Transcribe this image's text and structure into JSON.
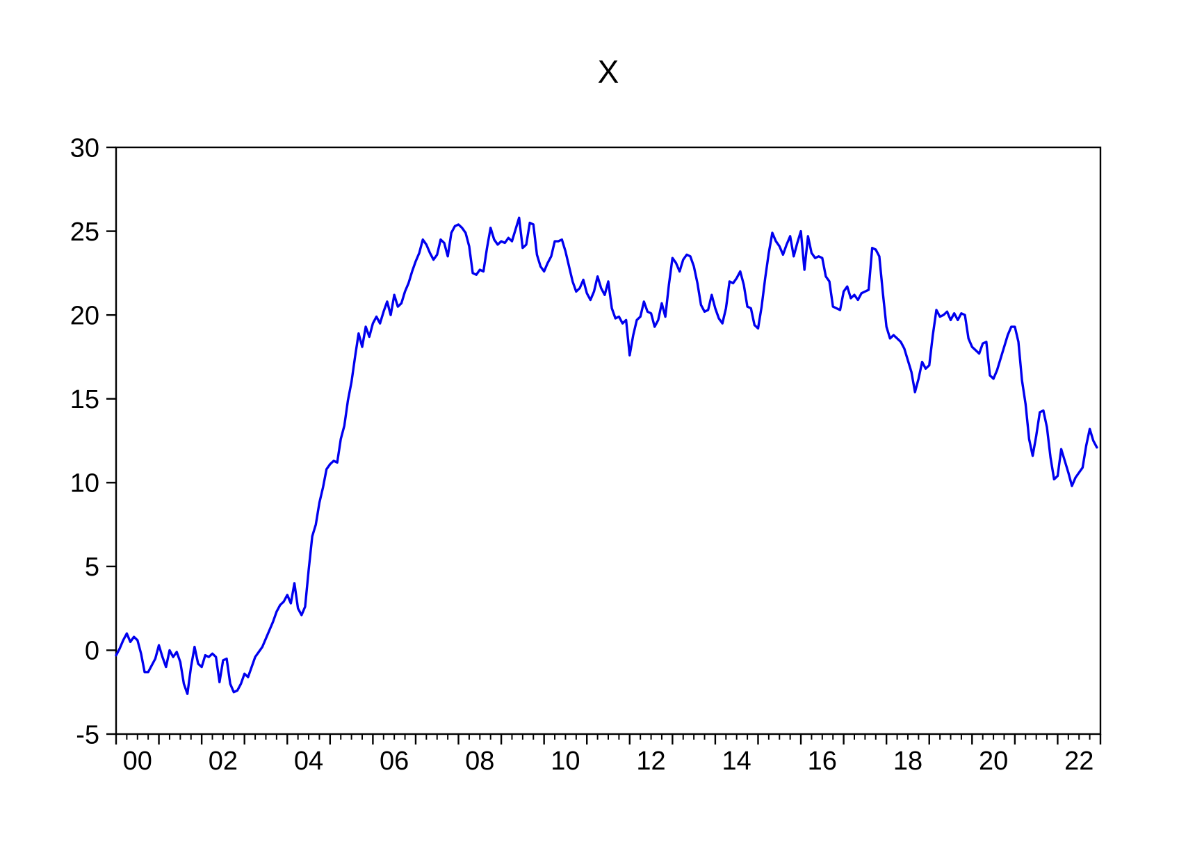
{
  "chart_data": {
    "type": "line",
    "title": "X",
    "xlabel": "",
    "ylabel": "",
    "legend": "none",
    "grid": "off",
    "plot_border": "box",
    "background_color": "#ffffff",
    "axis_color": "#000000",
    "x_axis": {
      "start_year": 2000,
      "end_year": 2023,
      "frequency": "monthly",
      "minor_tick_every_years": 0.25,
      "major_tick_every_years": 1,
      "tick_labels": [
        "00",
        "02",
        "04",
        "06",
        "08",
        "10",
        "12",
        "14",
        "16",
        "18",
        "20",
        "22"
      ],
      "tick_label_years": [
        2000,
        2002,
        2004,
        2006,
        2008,
        2010,
        2012,
        2014,
        2016,
        2018,
        2020,
        2022
      ]
    },
    "y_axis": {
      "min": -5,
      "max": 30,
      "tick_step": 5,
      "tick_values": [
        30,
        25,
        20,
        15,
        10,
        5,
        0,
        -5
      ],
      "tick_labels": [
        "30",
        "25",
        "20",
        "15",
        "10",
        "5",
        "0",
        "-5"
      ]
    },
    "series": [
      {
        "name": "X",
        "color": "#0000ee",
        "start": "2000M01",
        "values": [
          -0.3,
          0.1,
          0.6,
          1.0,
          0.5,
          0.8,
          0.6,
          -0.2,
          -1.3,
          -1.3,
          -0.9,
          -0.5,
          0.3,
          -0.4,
          -1.0,
          0.0,
          -0.4,
          -0.1,
          -0.7,
          -2.0,
          -2.6,
          -1.0,
          0.2,
          -0.8,
          -1.0,
          -0.3,
          -0.4,
          -0.2,
          -0.4,
          -1.9,
          -0.6,
          -0.5,
          -2.0,
          -2.5,
          -2.4,
          -2.0,
          -1.4,
          -1.6,
          -1.0,
          -0.4,
          -0.1,
          0.2,
          0.7,
          1.2,
          1.7,
          2.3,
          2.7,
          2.9,
          3.3,
          2.8,
          4.0,
          2.5,
          2.1,
          2.6,
          4.8,
          6.8,
          7.5,
          8.8,
          9.7,
          10.8,
          11.1,
          11.3,
          11.2,
          12.6,
          13.4,
          14.9,
          16.0,
          17.5,
          18.9,
          18.1,
          19.3,
          18.7,
          19.5,
          19.9,
          19.5,
          20.2,
          20.8,
          20.0,
          21.2,
          20.5,
          20.7,
          21.4,
          21.9,
          22.6,
          23.2,
          23.7,
          24.5,
          24.2,
          23.7,
          23.3,
          23.6,
          24.5,
          24.3,
          23.5,
          24.9,
          25.3,
          25.4,
          25.2,
          24.9,
          24.1,
          22.5,
          22.4,
          22.7,
          22.6,
          24.0,
          25.2,
          24.5,
          24.2,
          24.4,
          24.3,
          24.6,
          24.4,
          25.1,
          25.8,
          24.0,
          24.2,
          25.5,
          25.4,
          23.6,
          22.9,
          22.6,
          23.1,
          23.5,
          24.4,
          24.4,
          24.5,
          23.8,
          22.9,
          22.0,
          21.4,
          21.6,
          22.1,
          21.3,
          20.9,
          21.4,
          22.3,
          21.6,
          21.2,
          22.0,
          20.4,
          19.8,
          19.9,
          19.5,
          19.7,
          17.6,
          18.8,
          19.7,
          19.9,
          20.8,
          20.2,
          20.1,
          19.3,
          19.7,
          20.7,
          19.9,
          21.8,
          23.4,
          23.1,
          22.6,
          23.3,
          23.6,
          23.5,
          22.9,
          21.9,
          20.6,
          20.2,
          20.3,
          21.2,
          20.4,
          19.8,
          19.5,
          20.4,
          22.0,
          21.9,
          22.2,
          22.6,
          21.8,
          20.5,
          20.4,
          19.4,
          19.2,
          20.5,
          22.2,
          23.7,
          24.9,
          24.4,
          24.1,
          23.6,
          24.2,
          24.7,
          23.5,
          24.3,
          25.0,
          22.7,
          24.7,
          23.7,
          23.4,
          23.5,
          23.4,
          22.3,
          22.0,
          20.5,
          20.4,
          20.3,
          21.4,
          21.7,
          21.0,
          21.2,
          20.9,
          21.3,
          21.4,
          21.5,
          24.0,
          23.9,
          23.5,
          21.3,
          19.3,
          18.6,
          18.8,
          18.6,
          18.4,
          18.0,
          17.3,
          16.6,
          15.4,
          16.2,
          17.2,
          16.8,
          17.0,
          18.8,
          20.3,
          19.9,
          20.0,
          20.2,
          19.7,
          20.1,
          19.7,
          20.1,
          20.0,
          18.6,
          18.1,
          17.9,
          17.7,
          18.3,
          18.4,
          16.4,
          16.2,
          16.7,
          17.4,
          18.1,
          18.8,
          19.3,
          19.3,
          18.4,
          16.1,
          14.7,
          12.6,
          11.6,
          12.8,
          14.2,
          14.3,
          13.3,
          11.5,
          10.2,
          10.4,
          12.0,
          11.3,
          10.6,
          9.8,
          10.3,
          10.6,
          10.9,
          12.2,
          13.2,
          12.5,
          12.1
        ]
      }
    ]
  }
}
